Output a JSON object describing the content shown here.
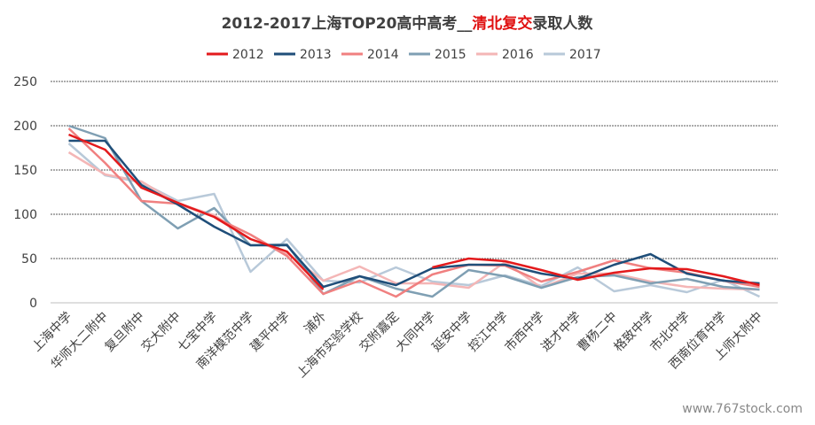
{
  "chart_data": {
    "type": "line",
    "title_parts": [
      {
        "text": "2012-2017上海TOP20高中高考__",
        "color": "#404040"
      },
      {
        "text": "清北复交",
        "color": "#e01010"
      },
      {
        "text": "录取人数",
        "color": "#404040"
      }
    ],
    "xlabel": "",
    "ylabel": "",
    "ylim": [
      0,
      250
    ],
    "yticks": [
      0,
      50,
      100,
      150,
      200,
      250
    ],
    "grid": true,
    "legend_position": "top-center",
    "categories": [
      "上海中学",
      "华师大二附中",
      "复旦附中",
      "交大附中",
      "七宝中学",
      "南洋模范中学",
      "建平中学",
      "浦外",
      "上海市实验学校",
      "交附嘉定",
      "大同中学",
      "延安中学",
      "控江中学",
      "市西中学",
      "进才中学",
      "曹杨二中",
      "格致中学",
      "市北中学",
      "西南位育中学",
      "上师大附中"
    ],
    "series": [
      {
        "name": "2012",
        "color": "#e31a1c",
        "values": [
          190,
          173,
          130,
          113,
          97,
          72,
          58,
          15,
          null,
          null,
          40,
          50,
          47,
          37,
          26,
          34,
          39,
          38,
          30,
          20
        ]
      },
      {
        "name": "2013",
        "color": "#1f4e79",
        "values": [
          183,
          183,
          133,
          111,
          86,
          65,
          65,
          18,
          30,
          20,
          39,
          43,
          43,
          33,
          27,
          43,
          55,
          33,
          25,
          22
        ]
      },
      {
        "name": "2014",
        "color": "#f08080",
        "values": [
          197,
          158,
          115,
          112,
          97,
          77,
          53,
          10,
          25,
          7,
          32,
          43,
          42,
          24,
          35,
          48,
          39,
          34,
          25,
          18
        ]
      },
      {
        "name": "2015",
        "color": "#7f9fb3",
        "values": [
          200,
          186,
          115,
          84,
          107,
          65,
          66,
          10,
          30,
          16,
          7,
          37,
          30,
          17,
          29,
          31,
          22,
          27,
          18,
          15
        ]
      },
      {
        "name": "2016",
        "color": "#f4b6b6",
        "values": [
          170,
          145,
          137,
          112,
          99,
          72,
          56,
          25,
          41,
          22,
          22,
          17,
          46,
          17,
          33,
          33,
          24,
          18,
          16,
          15
        ]
      },
      {
        "name": "2017",
        "color": "#b8c9d9",
        "values": [
          180,
          144,
          136,
          115,
          123,
          35,
          72,
          25,
          23,
          40,
          24,
          20,
          31,
          19,
          40,
          13,
          20,
          12,
          26,
          7
        ]
      }
    ]
  },
  "watermark": "www.767stock.com"
}
